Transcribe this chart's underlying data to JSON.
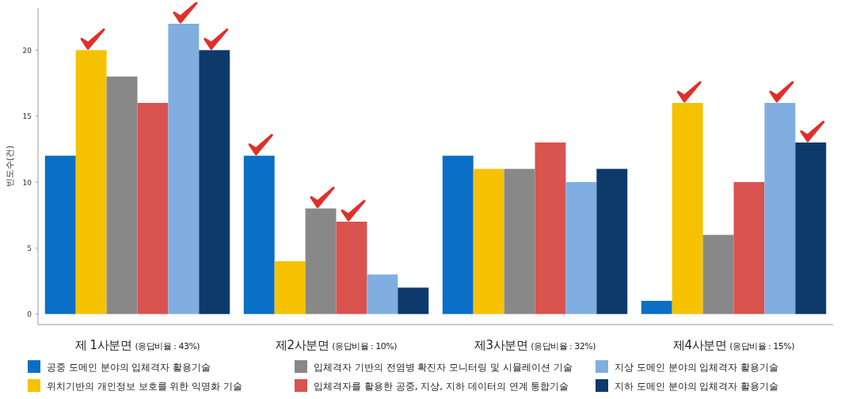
{
  "chart_data": {
    "type": "bar",
    "ylabel": "빈도수(건)",
    "categories": [
      "제 1사분면 (응답비율 : 43%)",
      "제2사분면 (응답비율 : 10%)",
      "제3사분면 (응답비율 : 32%)",
      "제4사분면 (응답비율 : 15%)"
    ],
    "series": [
      {
        "name": "공중 도메인 분야의 입체격자 활용기술",
        "color": "#0a6fc7",
        "values": [
          12,
          12,
          12,
          1
        ]
      },
      {
        "name": "위치기반의 개인정보 보호를 위한 익명화 기술",
        "color": "#f6c200",
        "values": [
          20,
          4,
          11,
          16
        ]
      },
      {
        "name": "입체격자 기반의 전염병 확진자 모니터링 및 시뮬레이션 기술",
        "color": "#888888",
        "values": [
          18,
          8,
          11,
          6
        ]
      },
      {
        "name": "입체격자를 활용한 공중, 지상, 지하 데이터의 연계 통합기술",
        "color": "#d9534f",
        "values": [
          16,
          7,
          13,
          10
        ]
      },
      {
        "name": "지상 도메인 분야의 입체격자 활용기술",
        "color": "#80aee0",
        "values": [
          22,
          3,
          10,
          16
        ]
      },
      {
        "name": "지하 도메인 분야의 입체격자 활용기술",
        "color": "#0d3a6b",
        "values": [
          20,
          2,
          11,
          13
        ]
      }
    ],
    "ylim": [
      -0.8,
      23.2
    ],
    "yticks": [
      0,
      5,
      10,
      15,
      20
    ],
    "grid": false,
    "legend": "bottom"
  }
}
